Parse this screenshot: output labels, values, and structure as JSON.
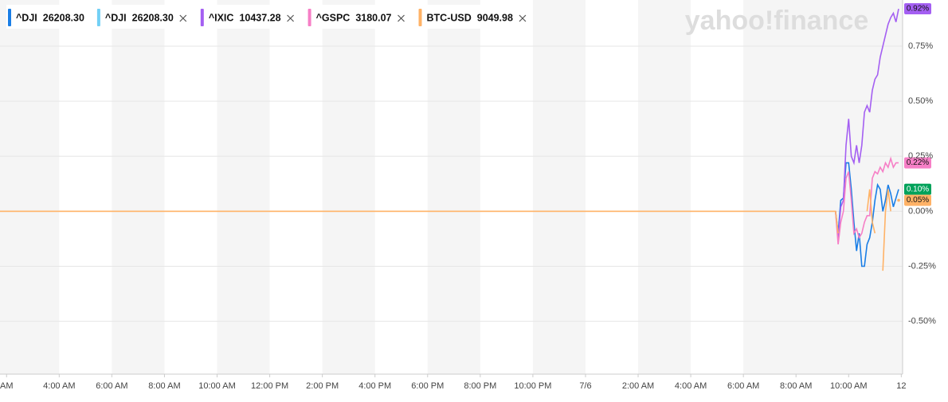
{
  "chart_data": {
    "type": "line",
    "watermark": "yahoo!finance",
    "x": [
      1.75,
      33.5,
      33.6,
      33.7,
      33.8,
      33.9,
      34.0,
      34.1,
      34.2,
      34.3,
      34.4,
      34.5,
      34.6,
      34.7,
      34.8,
      34.9,
      35.0,
      35.1,
      35.2,
      35.3,
      35.4,
      35.5,
      35.6,
      35.7,
      35.8,
      35.9
    ],
    "xlim": [
      1.75,
      36.05
    ],
    "xticks": [
      {
        "value": 2,
        "label": "AM"
      },
      {
        "value": 4,
        "label": "4:00 AM"
      },
      {
        "value": 6,
        "label": "6:00 AM"
      },
      {
        "value": 8,
        "label": "8:00 AM"
      },
      {
        "value": 10,
        "label": "10:00 AM"
      },
      {
        "value": 12,
        "label": "12:00 PM"
      },
      {
        "value": 14,
        "label": "2:00 PM"
      },
      {
        "value": 16,
        "label": "4:00 PM"
      },
      {
        "value": 18,
        "label": "6:00 PM"
      },
      {
        "value": 20,
        "label": "8:00 PM"
      },
      {
        "value": 22,
        "label": "10:00 PM"
      },
      {
        "value": 24,
        "label": "7/6"
      },
      {
        "value": 26,
        "label": "2:00 AM"
      },
      {
        "value": 28,
        "label": "4:00 AM"
      },
      {
        "value": 30,
        "label": "6:00 AM"
      },
      {
        "value": 32,
        "label": "8:00 AM"
      },
      {
        "value": 34,
        "label": "10:00 AM"
      },
      {
        "value": 36,
        "label": "12"
      }
    ],
    "ylim": [
      -0.74,
      0.96
    ],
    "yticks": [
      {
        "value": 0.75,
        "label": "0.75%"
      },
      {
        "value": 0.5,
        "label": "0.50%"
      },
      {
        "value": 0.25,
        "label": "0.25%"
      },
      {
        "value": 0,
        "label": "0.00%"
      },
      {
        "value": -0.25,
        "label": "-0.25%"
      },
      {
        "value": -0.5,
        "label": "-0.50%"
      }
    ],
    "grid": true,
    "series": [
      {
        "name": "^DJI",
        "price": "26208.30",
        "color": "#1a7ee6",
        "badge_color": "#00a25b",
        "values": [
          null,
          0,
          -0.1,
          0.05,
          0.06,
          0.22,
          0.22,
          0.1,
          -0.05,
          -0.18,
          -0.1,
          -0.25,
          -0.25,
          -0.15,
          -0.12,
          -0.05,
          0.05,
          0.12,
          0.1,
          0,
          0.05,
          0.12,
          0.08,
          0.02,
          0.06,
          0.1
        ],
        "value_labels": [
          null,
          null,
          null,
          null,
          null,
          null,
          null,
          null,
          null,
          null,
          null,
          null,
          null,
          null,
          null,
          null,
          null,
          null,
          null,
          null,
          null,
          null,
          null,
          null,
          null,
          "0.10%"
        ]
      },
      {
        "name": "^DJI",
        "price": "26208.30",
        "color": "#72d0f5",
        "badge_color": "#72d0f5",
        "values": [
          null,
          null,
          null,
          null,
          null,
          null,
          null,
          null,
          null,
          null,
          null,
          null,
          null,
          null,
          null,
          null,
          null,
          null,
          null,
          null,
          null,
          null,
          null,
          null,
          null,
          null
        ],
        "value_labels": [
          null,
          null,
          null,
          null,
          null,
          null,
          null,
          null,
          null,
          null,
          null,
          null,
          null,
          null,
          null,
          null,
          null,
          null,
          null,
          null,
          null,
          null,
          null,
          null,
          null,
          null
        ]
      },
      {
        "name": "^IXIC",
        "price": "10437.28",
        "color": "#a45ff2",
        "badge_color": "#a45ff2",
        "values": [
          null,
          0,
          -0.12,
          0.02,
          0.05,
          0.3,
          0.42,
          0.25,
          0.22,
          0.3,
          0.22,
          0.3,
          0.45,
          0.48,
          0.45,
          0.55,
          0.6,
          0.62,
          0.7,
          0.75,
          0.8,
          0.85,
          0.88,
          0.9,
          0.86,
          0.92
        ],
        "value_labels": [
          null,
          null,
          null,
          null,
          null,
          null,
          null,
          null,
          null,
          null,
          null,
          null,
          null,
          null,
          null,
          null,
          null,
          null,
          null,
          null,
          null,
          null,
          null,
          null,
          null,
          "0.92%"
        ]
      },
      {
        "name": "^GSPC",
        "price": "3180.07",
        "color": "#f67fc6",
        "badge_color": "#f67fc6",
        "values": [
          null,
          0,
          -0.15,
          -0.05,
          0,
          0.15,
          0.18,
          0.05,
          -0.1,
          -0.08,
          -0.12,
          -0.1,
          -0.05,
          -0.02,
          -0.02,
          0.15,
          0.18,
          0.17,
          0.2,
          0.18,
          0.22,
          0.2,
          0.24,
          0.2,
          0.22,
          0.22
        ],
        "value_labels": [
          null,
          null,
          null,
          null,
          null,
          null,
          null,
          null,
          null,
          null,
          null,
          null,
          null,
          null,
          null,
          null,
          null,
          null,
          null,
          null,
          null,
          null,
          null,
          null,
          null,
          "0.22%"
        ]
      },
      {
        "name": "BTC-USD",
        "price": "9049.98",
        "color": "#ffb266",
        "badge_color": "#ffb266",
        "values": [
          0,
          0,
          -0.1,
          null,
          null,
          null,
          null,
          null,
          null,
          null,
          null,
          null,
          null,
          0,
          0.1,
          -0.05,
          -0.1,
          null,
          null,
          -0.27,
          0,
          0.1,
          0,
          null,
          null,
          0.05
        ],
        "value_labels": [
          null,
          null,
          null,
          null,
          null,
          null,
          null,
          null,
          null,
          null,
          null,
          null,
          null,
          null,
          null,
          null,
          null,
          null,
          null,
          null,
          null,
          null,
          null,
          null,
          null,
          "0.05%"
        ]
      }
    ]
  }
}
